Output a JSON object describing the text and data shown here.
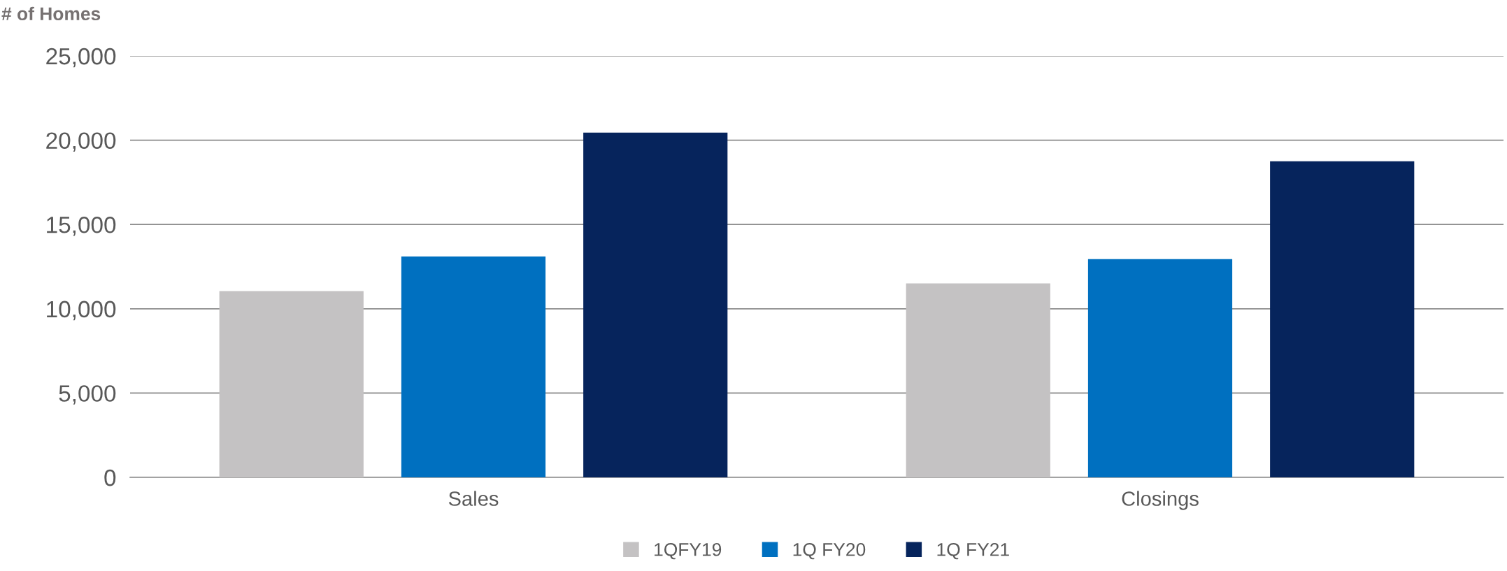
{
  "chart_data": {
    "type": "bar",
    "ylabel": "# of Homes",
    "categories": [
      "Sales",
      "Closings"
    ],
    "series": [
      {
        "name": "1QFY19",
        "color": "#c4c2c3",
        "values": [
          11050,
          11500
        ]
      },
      {
        "name": "1Q FY20",
        "color": "#0070c0",
        "values": [
          13100,
          12950
        ]
      },
      {
        "name": "1Q FY21",
        "color": "#06245c",
        "values": [
          20450,
          18750
        ]
      }
    ],
    "ylim": [
      0,
      25000
    ],
    "yticks": [
      {
        "value": 0,
        "label": "0"
      },
      {
        "value": 5000,
        "label": "5,000"
      },
      {
        "value": 10000,
        "label": "10,000"
      },
      {
        "value": 15000,
        "label": "15,000"
      },
      {
        "value": 20000,
        "label": "20,000"
      },
      {
        "value": 25000,
        "label": "25,000"
      }
    ],
    "grid": "y",
    "legend": "bottom"
  }
}
